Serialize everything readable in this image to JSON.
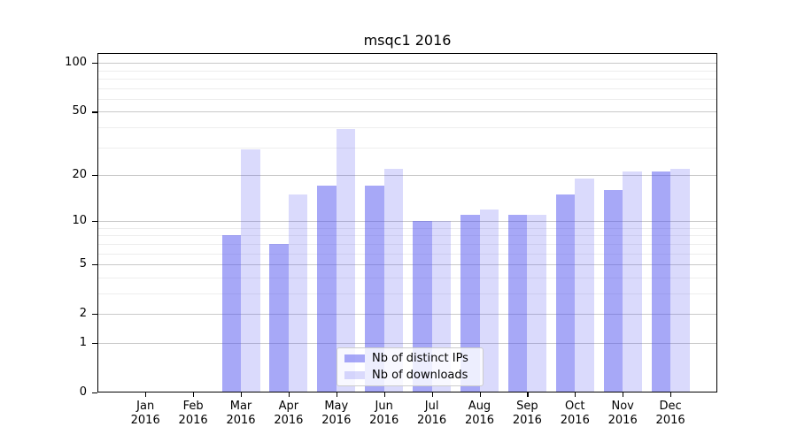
{
  "figure": {
    "title": "msqc1 2016"
  },
  "legend": {
    "items": [
      {
        "label": "Nb of distinct IPs",
        "color": "rgba(80,82,240,0.5)"
      },
      {
        "label": "Nb of downloads",
        "color": "rgba(80,82,240,0.21)"
      }
    ]
  },
  "chart_data": {
    "type": "bar",
    "title": "msqc1 2016",
    "categories": [
      "Jan",
      "Feb",
      "Mar",
      "Apr",
      "May",
      "Jun",
      "Jul",
      "Aug",
      "Sep",
      "Oct",
      "Nov",
      "Dec"
    ],
    "year": "2016",
    "series": [
      {
        "name": "Nb of distinct IPs",
        "color": "rgba(80,82,240,0.5)",
        "values": [
          0,
          0,
          8,
          7,
          17,
          17,
          10,
          11,
          11,
          15,
          16,
          21
        ]
      },
      {
        "name": "Nb of downloads",
        "color": "rgba(80,82,240,0.21)",
        "values": [
          0,
          0,
          29,
          15,
          39,
          22,
          10,
          12,
          11,
          19,
          21,
          22
        ]
      }
    ],
    "xlabel": "",
    "ylabel": "",
    "yscale": "log(1+x)",
    "yticks": [
      0,
      1,
      2,
      5,
      10,
      20,
      50,
      100
    ],
    "minor_grid_values": [
      3,
      4,
      6,
      7,
      8,
      9,
      30,
      40,
      60,
      70,
      80,
      90
    ],
    "ylim": [
      0,
      115
    ],
    "grid": true,
    "legend_position": "lower center"
  }
}
